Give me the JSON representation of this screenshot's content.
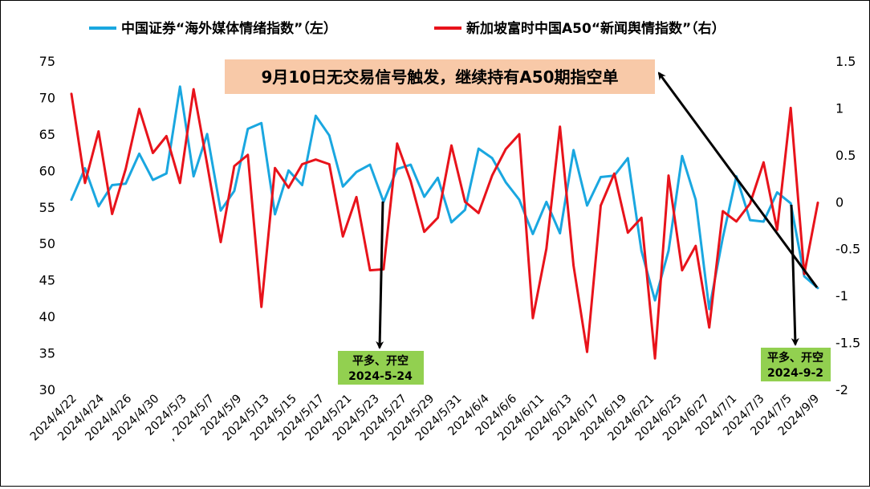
{
  "chart_data": {
    "type": "line",
    "title": "",
    "xlabel": "",
    "ylabel_left": "",
    "ylabel_right": "",
    "legend": {
      "placement": "top"
    },
    "grid": false,
    "y_left": {
      "range": [
        30,
        75
      ],
      "ticks": [
        "30",
        "35",
        "40",
        "45",
        "50",
        "55",
        "60",
        "65",
        "70",
        "75"
      ]
    },
    "y_right": {
      "range": [
        -2,
        1.5
      ],
      "ticks": [
        "-2",
        "-1.5",
        "-1",
        "-0.5",
        "0",
        "0.5",
        "1",
        "1.5"
      ]
    },
    "x_tick_labels": [
      "2024/4/22",
      "2024/4/24",
      "2024/4/26",
      "2024/4/30",
      "2024/5/3",
      ", 2024/5/7",
      "2024/5/9",
      "2024/5/13",
      "2024/5/15",
      "2024/5/17",
      "2024/5/21",
      "2024/5/23",
      "2024/5/27",
      "2024/5/29",
      "2024/5/31",
      "2024/6/4",
      "2024/6/6",
      "2024/6/11",
      "2024/6/13",
      "2024/6/17",
      "2024/6/19",
      "2024/6/21",
      "2024/6/25",
      "2024/6/27",
      "2024/7/1",
      "2024/7/3",
      "2024/7/5",
      "2024/9/9"
    ],
    "series": [
      {
        "name": "中国证券“海外媒体情绪指数”（左）",
        "axis": "left",
        "color": "#1aa7e0",
        "values": [
          56.0,
          60.3,
          55.1,
          58.0,
          58.2,
          62.3,
          58.7,
          59.6,
          71.5,
          59.2,
          65.0,
          54.5,
          57.2,
          65.7,
          66.5,
          54.0,
          60.0,
          58.0,
          67.5,
          64.8,
          57.8,
          59.8,
          60.8,
          55.7,
          60.2,
          60.8,
          56.4,
          59.0,
          52.9,
          54.6,
          63.0,
          61.7,
          58.4,
          56.0,
          51.3,
          55.7,
          51.4,
          62.8,
          55.2,
          59.1,
          59.3,
          61.7,
          49.0,
          42.2,
          49.0,
          62.0,
          56.0,
          41.0,
          50.8,
          59.2,
          53.2,
          53.0,
          57.0,
          55.5,
          45.5,
          43.9
        ]
      },
      {
        "name": "新加坡富时中国A50“新闻舆情指数”（右）",
        "axis": "right",
        "color": "#e8131b",
        "values": [
          1.15,
          0.2,
          0.75,
          -0.13,
          0.35,
          0.99,
          0.52,
          0.7,
          0.2,
          1.2,
          0.4,
          -0.43,
          0.38,
          0.5,
          -1.12,
          0.36,
          0.15,
          0.4,
          0.45,
          0.4,
          -0.37,
          0.05,
          -0.73,
          -0.72,
          0.62,
          0.22,
          -0.32,
          -0.17,
          0.6,
          0.0,
          -0.12,
          0.28,
          0.56,
          0.72,
          -1.24,
          -0.5,
          0.8,
          -0.68,
          -1.6,
          -0.04,
          0.3,
          -0.33,
          -0.17,
          -1.67,
          0.28,
          -0.73,
          -0.47,
          -1.34,
          -0.1,
          -0.21,
          -0.02,
          0.42,
          -0.3,
          1.0,
          -0.77,
          -0.01
        ]
      }
    ],
    "annotations": [
      {
        "text": "9月10日无交易信号触发，继续持有A50期指空单",
        "style": "callout",
        "color": "#f8c9a8",
        "target_index": 55
      },
      {
        "lines": [
          "平多、开空",
          "2024-5-24"
        ],
        "style": "box",
        "color": "#92d050",
        "target_index": 23
      },
      {
        "lines": [
          "平多、开空",
          "2024-9-2"
        ],
        "style": "box",
        "color": "#92d050",
        "target_index": 53
      }
    ]
  }
}
